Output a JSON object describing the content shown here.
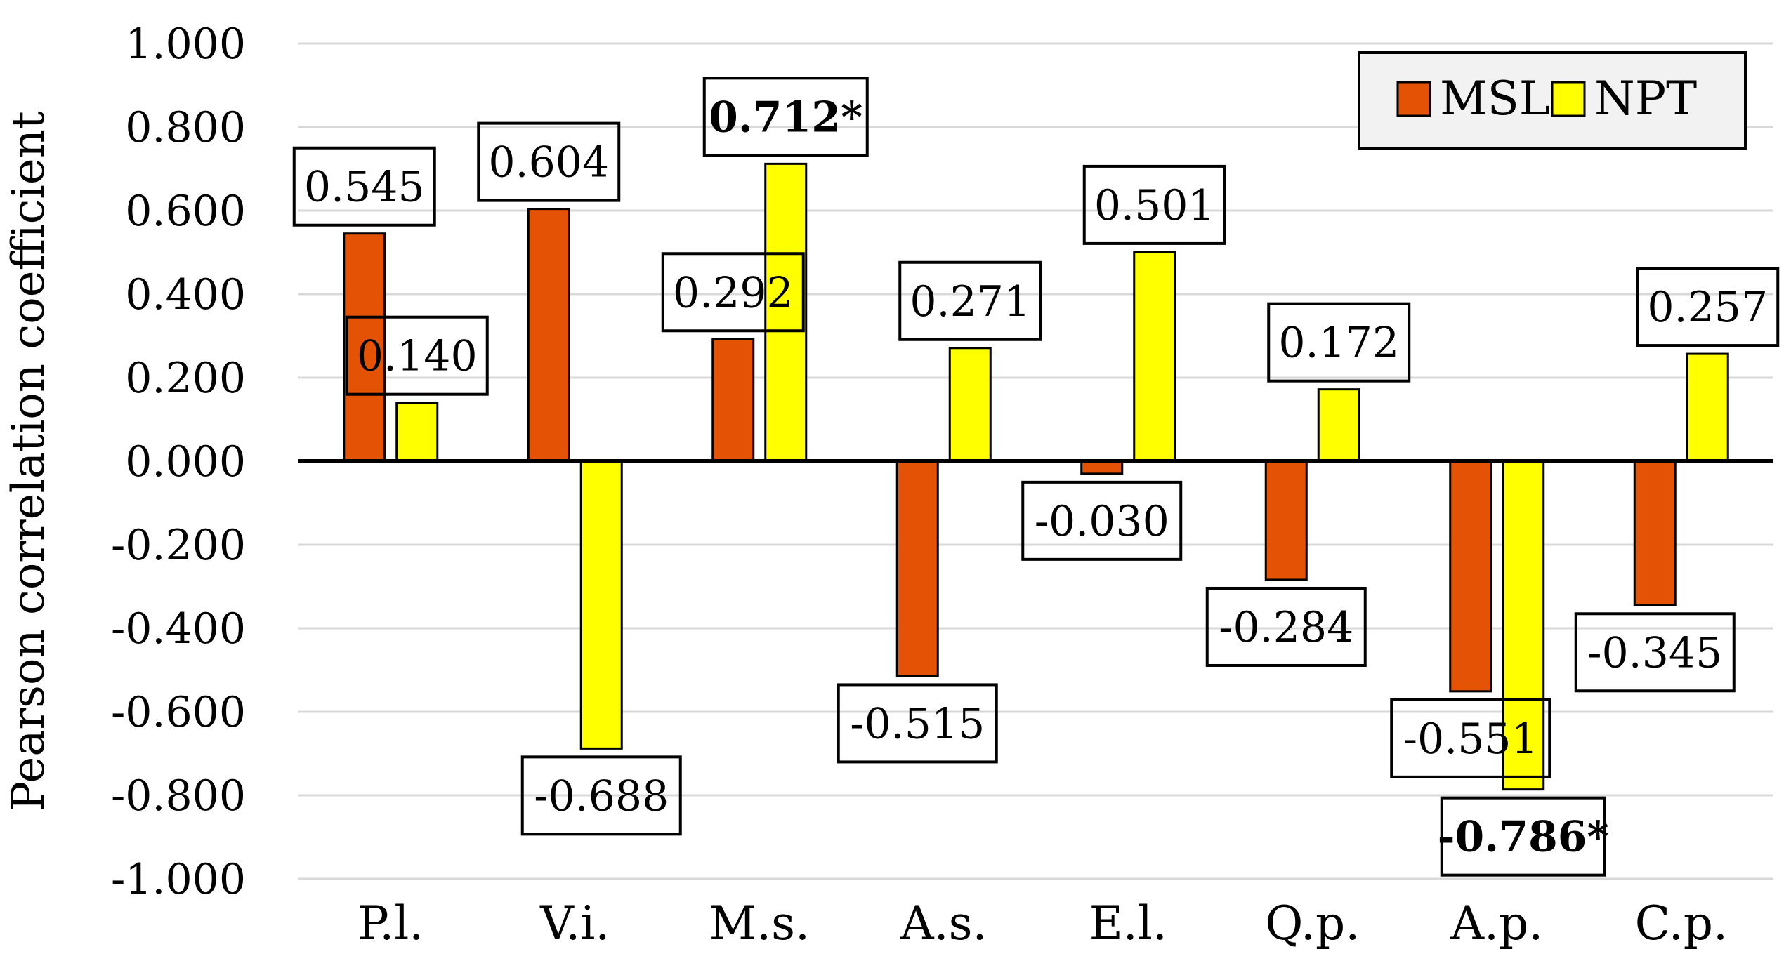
{
  "chart_data": {
    "type": "bar",
    "ylabel": "Pearson correlation coefficient",
    "ylim": [
      -1.0,
      1.0
    ],
    "ytick_step": 0.2,
    "ytick_labels": [
      "1.000",
      "0.800",
      "0.600",
      "0.400",
      "0.200",
      "0.000",
      "-0.200",
      "-0.400",
      "-0.600",
      "-0.800",
      "-1.000"
    ],
    "categories": [
      "P.l.",
      "V.i.",
      "M.s.",
      "A.s.",
      "E.l.",
      "Q.p.",
      "A.p.",
      "C.p."
    ],
    "grid": true,
    "legend_position": "top-right",
    "series": [
      {
        "name": "MSL",
        "color": "#E35205",
        "values": [
          0.545,
          0.604,
          0.292,
          -0.515,
          -0.03,
          -0.284,
          -0.551,
          -0.345
        ],
        "labels": [
          "0.545",
          "0.604",
          "0.292",
          "-0.515",
          "-0.030",
          "-0.284",
          "-0.551",
          "-0.345"
        ],
        "bold": [
          false,
          false,
          false,
          false,
          false,
          false,
          false,
          false
        ]
      },
      {
        "name": "NPT",
        "color": "#FFFF00",
        "values": [
          0.14,
          -0.688,
          0.712,
          0.271,
          0.501,
          0.172,
          -0.786,
          0.257
        ],
        "labels": [
          "0.140",
          "-0.688",
          "0.712*",
          "0.271",
          "0.501",
          "0.172",
          "-0.786*",
          "0.257"
        ],
        "bold": [
          false,
          false,
          true,
          false,
          false,
          false,
          true,
          false
        ]
      }
    ]
  }
}
